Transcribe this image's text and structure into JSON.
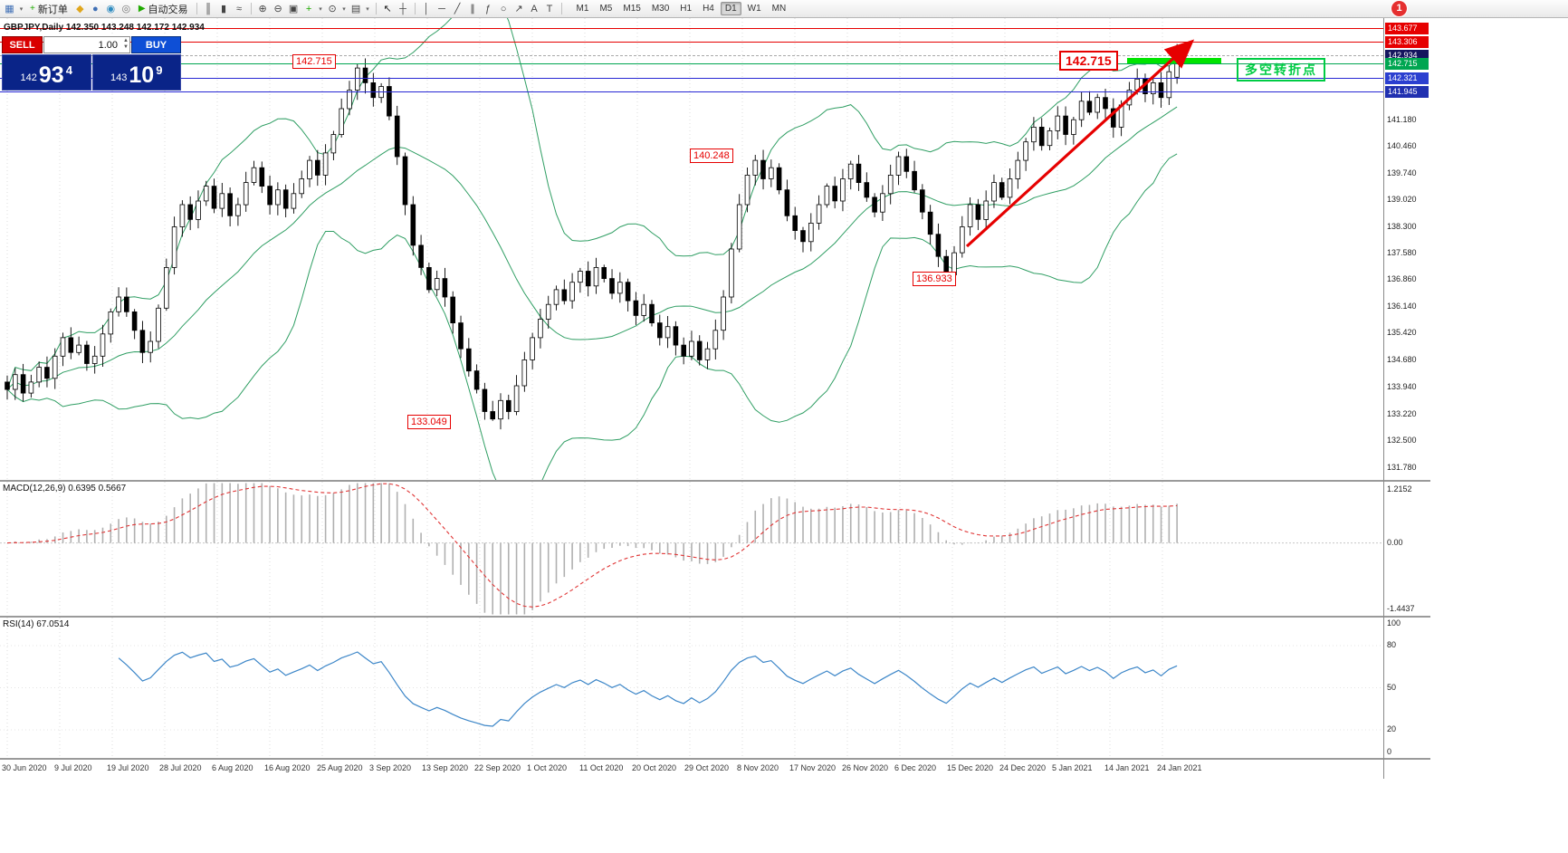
{
  "app": {
    "notification_badge": "1"
  },
  "toolbar": {
    "timeframes": [
      "M1",
      "M5",
      "M15",
      "M30",
      "H1",
      "H4",
      "D1",
      "W1",
      "MN"
    ],
    "active_timeframe": "D1",
    "items": [
      {
        "t": "icon",
        "name": "new-chart-icon",
        "g": "▦",
        "c": "#3f6fb5"
      },
      {
        "t": "drop",
        "name": "new-chart-dropdown-icon",
        "g": "▾"
      },
      {
        "t": "btn",
        "name": "new-order-button",
        "label": "新订单",
        "g": "+",
        "c": "#1faa00"
      },
      {
        "t": "icon",
        "name": "metaeditor-icon",
        "g": "◆",
        "c": "#e0a61c"
      },
      {
        "t": "icon",
        "name": "market-watch-icon",
        "g": "●",
        "c": "#3f6fb5"
      },
      {
        "t": "icon",
        "name": "data-window-icon",
        "g": "◉",
        "c": "#2e8bc0"
      },
      {
        "t": "icon",
        "name": "navigator-icon",
        "g": "◎",
        "c": "#777777"
      },
      {
        "t": "btn",
        "name": "auto-trading-button",
        "label": "自动交易",
        "g": "▶",
        "c": "#1faa00"
      },
      {
        "t": "sep"
      },
      {
        "t": "icon",
        "name": "bar-chart-icon",
        "g": "║",
        "c": "#444444"
      },
      {
        "t": "icon",
        "name": "candlestick-chart-icon",
        "g": "▮",
        "c": "#444444"
      },
      {
        "t": "icon",
        "name": "line-chart-icon",
        "g": "≈",
        "c": "#444444"
      },
      {
        "t": "sep"
      },
      {
        "t": "icon",
        "name": "zoom-in-icon",
        "g": "⊕",
        "c": "#444444"
      },
      {
        "t": "icon",
        "name": "zoom-out-icon",
        "g": "⊖",
        "c": "#444444"
      },
      {
        "t": "icon",
        "name": "tile-windows-icon",
        "g": "▣",
        "c": "#444444"
      },
      {
        "t": "icon",
        "name": "indicators-icon",
        "g": "+",
        "c": "#1faa00"
      },
      {
        "t": "drop",
        "name": "indicators-dropdown-icon",
        "g": "▾"
      },
      {
        "t": "icon",
        "name": "periods-icon",
        "g": "⊙",
        "c": "#444444"
      },
      {
        "t": "drop",
        "name": "periods-dropdown-icon",
        "g": "▾"
      },
      {
        "t": "icon",
        "name": "templates-icon",
        "g": "▤",
        "c": "#444444"
      },
      {
        "t": "drop",
        "name": "templates-dropdown-icon",
        "g": "▾"
      },
      {
        "t": "sep"
      },
      {
        "t": "icon",
        "name": "cursor-icon",
        "g": "↖",
        "c": "#222222"
      },
      {
        "t": "icon",
        "name": "crosshair-icon",
        "g": "┼",
        "c": "#444444"
      },
      {
        "t": "sep"
      },
      {
        "t": "icon",
        "name": "vertical-line-icon",
        "g": "│",
        "c": "#444444"
      },
      {
        "t": "icon",
        "name": "horizontal-line-icon",
        "g": "─",
        "c": "#444444"
      },
      {
        "t": "icon",
        "name": "trendline-icon",
        "g": "╱",
        "c": "#444444"
      },
      {
        "t": "icon",
        "name": "channel-icon",
        "g": "∥",
        "c": "#444444"
      },
      {
        "t": "icon",
        "name": "fibonacci-icon",
        "g": "ƒ",
        "c": "#444444"
      },
      {
        "t": "icon",
        "name": "shapes-icon",
        "g": "○",
        "c": "#444444"
      },
      {
        "t": "icon",
        "name": "arrows-icon",
        "g": "↗",
        "c": "#444444"
      },
      {
        "t": "icon",
        "name": "text-icon",
        "g": "A",
        "c": "#444444"
      },
      {
        "t": "icon",
        "name": "text-label-icon",
        "g": "T",
        "c": "#444444"
      },
      {
        "t": "sep"
      }
    ]
  },
  "trade_panel": {
    "sell": "SELL",
    "buy": "BUY",
    "volume": "1.00",
    "sell_price_small": "142",
    "sell_price_big": "93",
    "sell_price_sup": "4",
    "buy_price_small": "143",
    "buy_price_big": "10",
    "buy_price_sup": "9"
  },
  "chart": {
    "ohlc_line": "GBPJPY,Daily  142.350 143.248 142.172 142.934",
    "annotations": {
      "peak1": "142.715",
      "peak1_big": "142.715",
      "nov_high": "140.248",
      "dec_low": "136.933",
      "sep_low": "133.049",
      "turning_point": "多空转折点"
    },
    "price_axis": [
      "141.180",
      "140.460",
      "139.740",
      "139.020",
      "138.300",
      "137.580",
      "136.860",
      "136.140",
      "135.420",
      "134.680",
      "133.940",
      "133.220",
      "132.500",
      "131.780"
    ],
    "line_labels": [
      {
        "text": "143.677",
        "price": 143.677,
        "color": "#e60000"
      },
      {
        "text": "143.306",
        "price": 143.306,
        "color": "#e60000"
      },
      {
        "text": "142.934",
        "price": 142.934,
        "color": "#15155e"
      },
      {
        "text": "142.715",
        "price": 142.715,
        "color": "#00a651"
      },
      {
        "text": "142.321",
        "price": 142.321,
        "color": "#2b3fd0"
      },
      {
        "text": "141.945",
        "price": 141.945,
        "color": "#2030b0"
      }
    ]
  },
  "macd_panel": {
    "label": "MACD(12,26,9) 0.6395 0.5667",
    "scale_max": "1.2152",
    "scale_zero": "0.00",
    "scale_min": "-1.4437"
  },
  "rsi_panel": {
    "label": "RSI(14) 67.0514",
    "scale": [
      "100",
      "80",
      "50",
      "20",
      "0"
    ]
  },
  "chart_data": {
    "type": "candlestick",
    "symbol": "GBPJPY",
    "timeframe": "Daily",
    "title": "GBPJPY,Daily",
    "last_ohlc": {
      "open": 142.35,
      "high": 143.248,
      "low": 142.172,
      "close": 142.934
    },
    "ylim": [
      131.45,
      143.95
    ],
    "x_labels": [
      "30 Jun 2020",
      "9 Jul 2020",
      "19 Jul 2020",
      "28 Jul 2020",
      "6 Aug 2020",
      "16 Aug 2020",
      "25 Aug 2020",
      "3 Sep 2020",
      "13 Sep 2020",
      "22 Sep 2020",
      "1 Oct 2020",
      "11 Oct 2020",
      "20 Oct 2020",
      "29 Oct 2020",
      "8 Nov 2020",
      "17 Nov 2020",
      "26 Nov 2020",
      "6 Dec 2020",
      "15 Dec 2020",
      "24 Dec 2020",
      "5 Jan 2021",
      "14 Jan 2021",
      "24 Jan 2021"
    ],
    "closes": [
      133.9,
      134.3,
      133.8,
      134.1,
      134.5,
      134.2,
      134.8,
      135.3,
      134.9,
      135.1,
      134.6,
      134.8,
      135.4,
      136.0,
      136.4,
      136.0,
      135.5,
      134.9,
      135.2,
      136.1,
      137.2,
      138.3,
      138.9,
      138.5,
      139.0,
      139.4,
      138.8,
      139.2,
      138.6,
      138.9,
      139.5,
      139.9,
      139.4,
      138.9,
      139.3,
      138.8,
      139.2,
      139.6,
      140.1,
      139.7,
      140.3,
      140.8,
      141.5,
      142.0,
      142.6,
      142.2,
      141.8,
      142.1,
      141.3,
      140.2,
      138.9,
      137.8,
      137.2,
      136.6,
      136.9,
      136.4,
      135.7,
      135.0,
      134.4,
      133.9,
      133.3,
      133.1,
      133.6,
      133.3,
      134.0,
      134.7,
      135.3,
      135.8,
      136.2,
      136.6,
      136.3,
      136.8,
      137.1,
      136.7,
      137.2,
      136.9,
      136.5,
      136.8,
      136.3,
      135.9,
      136.2,
      135.7,
      135.3,
      135.6,
      135.1,
      134.8,
      135.2,
      134.7,
      135.0,
      135.5,
      136.4,
      137.7,
      138.9,
      139.7,
      140.1,
      139.6,
      139.9,
      139.3,
      138.6,
      138.2,
      137.9,
      138.4,
      138.9,
      139.4,
      139.0,
      139.6,
      140.0,
      139.5,
      139.1,
      138.7,
      139.2,
      139.7,
      140.2,
      139.8,
      139.3,
      138.7,
      138.1,
      137.5,
      137.0,
      137.6,
      138.3,
      138.9,
      138.5,
      139.0,
      139.5,
      139.1,
      139.6,
      140.1,
      140.6,
      141.0,
      140.5,
      140.9,
      141.3,
      140.8,
      141.2,
      141.7,
      141.4,
      141.8,
      141.5,
      141.0,
      141.6,
      142.0,
      142.3,
      141.9,
      142.2,
      141.8,
      142.5,
      142.93
    ],
    "key_points": [
      {
        "i": 44,
        "high": 142.715
      },
      {
        "i": 61,
        "low": 133.049
      },
      {
        "i": 94,
        "high": 140.248
      },
      {
        "i": 118,
        "low": 136.933
      }
    ],
    "hlines": [
      {
        "price": 143.677,
        "color": "red"
      },
      {
        "price": 143.306,
        "color": "red"
      },
      {
        "price": 142.934,
        "color": "bid",
        "style": "bid-dashed"
      },
      {
        "price": 142.715,
        "color": "green"
      },
      {
        "price": 142.321,
        "color": "blue"
      },
      {
        "price": 141.945,
        "color": "blue"
      }
    ],
    "indicators": [
      {
        "name": "Bollinger Bands",
        "period": 20,
        "deviations": 2
      },
      {
        "name": "MACD",
        "fast": 12,
        "slow": 26,
        "signal": 9,
        "current": [
          0.6395,
          0.5667
        ],
        "scale": [
          -1.4437,
          1.2152
        ]
      },
      {
        "name": "RSI",
        "period": 14,
        "current": 67.0514,
        "scale": [
          0,
          100
        ]
      }
    ]
  }
}
